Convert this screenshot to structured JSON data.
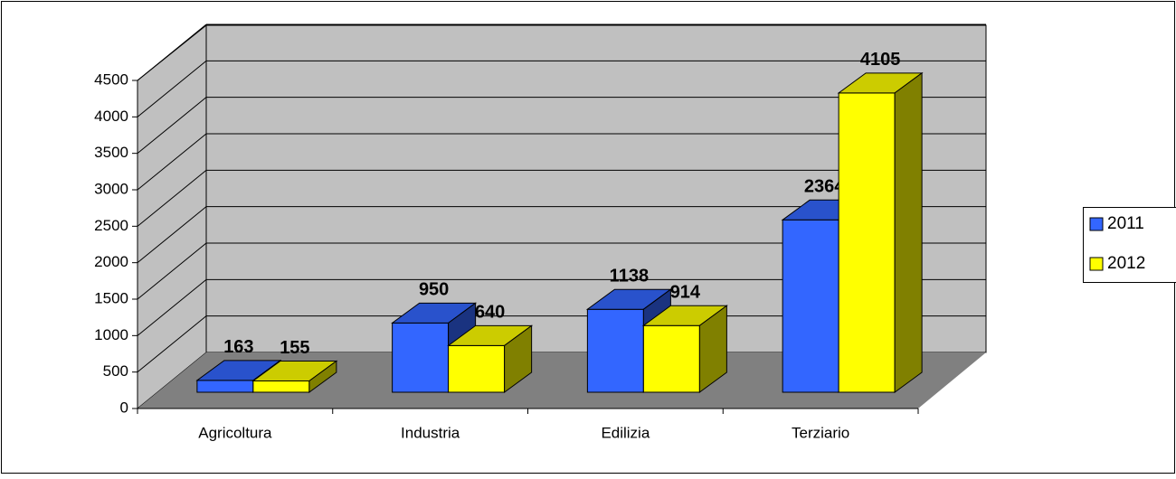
{
  "chart_data": {
    "type": "bar3d",
    "categories": [
      "Agricoltura",
      "Industria",
      "Edilizia",
      "Terziario"
    ],
    "series": [
      {
        "name": "2011",
        "color": "#3366ff",
        "values": [
          163,
          950,
          1138,
          2364
        ]
      },
      {
        "name": "2012",
        "color": "#ffff00",
        "values": [
          155,
          640,
          914,
          4105
        ]
      }
    ],
    "ylim": [
      0,
      4500
    ],
    "yticks": [
      0,
      500,
      1000,
      1500,
      2000,
      2500,
      3000,
      3500,
      4000,
      4500
    ],
    "grid": true,
    "legend": "right"
  }
}
